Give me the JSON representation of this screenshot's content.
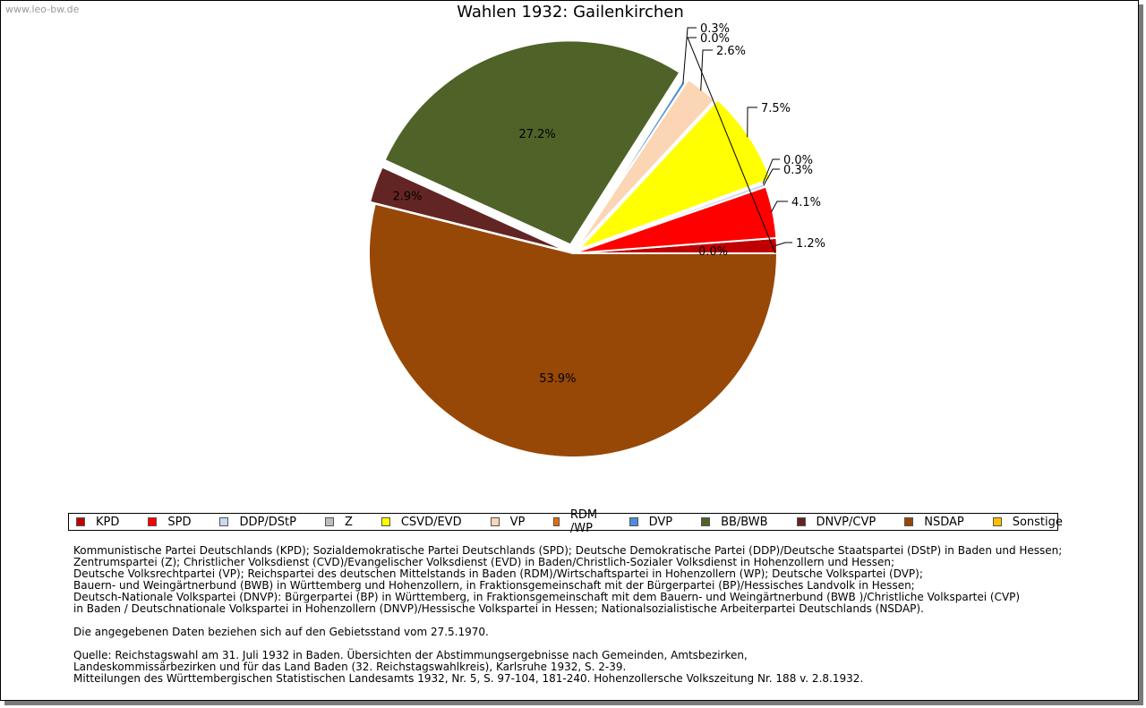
{
  "watermark": "www.leo-bw.de",
  "chart_data": {
    "type": "pie",
    "title": "Wahlen 1932: Gailenkirchen",
    "slices": [
      {
        "name": "KPD",
        "value": 1.2,
        "label": "1.2%",
        "color": "#c00000"
      },
      {
        "name": "SPD",
        "value": 4.1,
        "label": "4.1%",
        "color": "#ff0000"
      },
      {
        "name": "DDP/DStP",
        "value": 0.3,
        "label": "0.3%",
        "color": "#c8daf0"
      },
      {
        "name": "Z",
        "value": 0.0,
        "label": "0.0%",
        "color": "#bdbdbd"
      },
      {
        "name": "CSVD/EVD",
        "value": 7.5,
        "label": "7.5%",
        "color": "#ffff00"
      },
      {
        "name": "VP",
        "value": 2.6,
        "label": "2.6%",
        "color": "#fcd5b4"
      },
      {
        "name": "RDM /WP",
        "value": 0.0,
        "label": "0.0%",
        "color": "#e46c0a"
      },
      {
        "name": "DVP",
        "value": 0.3,
        "label": "0.3%",
        "color": "#4a8fd8"
      },
      {
        "name": "BB/BWB",
        "value": 27.2,
        "label": "27.2%",
        "color": "#4f6228"
      },
      {
        "name": "DNVP/CVP",
        "value": 2.9,
        "label": "2.9%",
        "color": "#632523"
      },
      {
        "name": "NSDAP",
        "value": 53.9,
        "label": "53.9%",
        "color": "#974806"
      },
      {
        "name": "Sonstige",
        "value": 0.0,
        "label": "0.0%",
        "color": "#ffc000"
      }
    ],
    "legend_position": "bottom"
  },
  "notes": {
    "parties": [
      "Kommunistische Partei Deutschlands (KPD); Sozialdemokratische Partei Deutschlands (SPD); Deutsche Demokratische Partei (DDP)/Deutsche Staatspartei (DStP) in Baden und Hessen;",
      "Zentrumspartei (Z); Christlicher Volksdienst (CVD)/Evangelischer Volksdienst (EVD) in Baden/Christlich-Sozialer Volksdienst in Hohenzollern und Hessen;",
      "Deutsche Volksrechtpartei (VP); Reichspartei des deutschen Mittelstands in Baden (RDM)/Wirtschaftspartei in Hohenzollern (WP); Deutsche Volkspartei (DVP);",
      "Bauern- und Weingärtnerbund (BWB) in Württemberg und Hohenzollern, in Fraktionsgemeinschaft mit der Bürgerpartei (BP)/Hessisches Landvolk in Hessen;",
      "Deutsch-Nationale Volkspartei (DNVP): Bürgerpartei (BP) in Württemberg, in Fraktionsgemeinschaft mit dem Bauern- und Weingärtnerbund (BWB )/Christliche Volkspartei (CVP)",
      "in Baden / Deutschnationale Volkspartei in Hohenzollern (DNVP)/Hessische Volkspartei in Hessen; Nationalsozialistische Arbeiterpartei Deutschlands (NSDAP)."
    ],
    "territory": "Die angegebenen Daten beziehen sich auf den Gebietsstand vom 27.5.1970.",
    "source": [
      "Quelle: Reichstagswahl am 31. Juli 1932 in Baden. Übersichten der Abstimmungsergebnisse nach Gemeinden, Amtsbezirken,",
      "Landeskommissärbezirken und für das Land Baden (32. Reichstagswahlkreis), Karlsruhe 1932, S. 2-39.",
      "Mitteilungen des Württembergischen Statistischen Landesamts 1932, Nr. 5, S. 97-104, 181-240. Hohenzollersche Volkszeitung Nr. 188 v. 2.8.1932."
    ]
  }
}
